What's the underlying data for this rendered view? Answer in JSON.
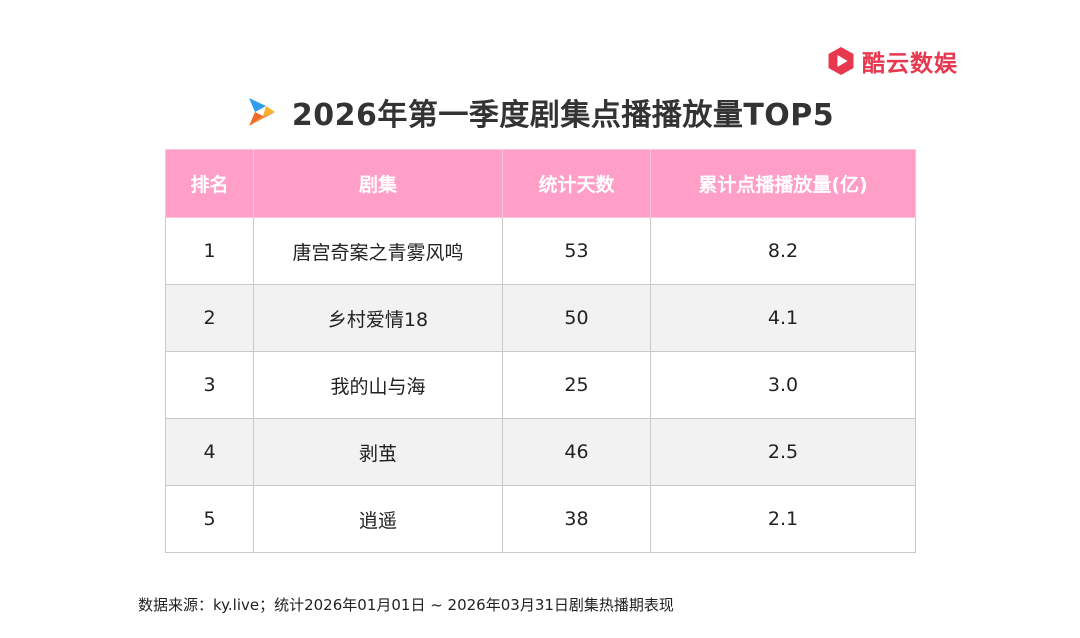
{
  "brand": {
    "name": "酷云数娱",
    "color": "#e8384f",
    "logo_icon": "play-hexagon-icon"
  },
  "header": {
    "title": "2026年第一季度剧集点播播放量TOP5",
    "icon": "play-arrow-icon"
  },
  "table": {
    "columns": [
      "排名",
      "剧集",
      "统计天数",
      "累计点播播放量(亿)"
    ],
    "rows": [
      [
        "1",
        "唐宫奇案之青雾风鸣",
        "53",
        "8.2"
      ],
      [
        "2",
        "乡村爱情18",
        "50",
        "4.1"
      ],
      [
        "3",
        "我的山与海",
        "25",
        "3.0"
      ],
      [
        "4",
        "剥茧",
        "46",
        "2.5"
      ],
      [
        "5",
        "逍遥",
        "38",
        "2.1"
      ]
    ],
    "header_color": "#ff9ec6"
  },
  "chart_data": {
    "type": "table",
    "title": "2026年第一季度剧集点播播放量TOP5",
    "columns": [
      "排名",
      "剧集",
      "统计天数",
      "累计点播播放量(亿)"
    ],
    "rows": [
      {
        "rank": 1,
        "series": "唐宫奇案之青雾风鸣",
        "days": 53,
        "plays_100m": 8.2
      },
      {
        "rank": 2,
        "series": "乡村爱情18",
        "days": 50,
        "plays_100m": 4.1
      },
      {
        "rank": 3,
        "series": "我的山与海",
        "days": 25,
        "plays_100m": 3.0
      },
      {
        "rank": 4,
        "series": "剥茧",
        "days": 46,
        "plays_100m": 2.5
      },
      {
        "rank": 5,
        "series": "逍遥",
        "days": 38,
        "plays_100m": 2.1
      }
    ]
  },
  "footer": {
    "source": "数据来源：ky.live；统计2026年01月01日 ~  2026年03月31日剧集热播期表现"
  }
}
